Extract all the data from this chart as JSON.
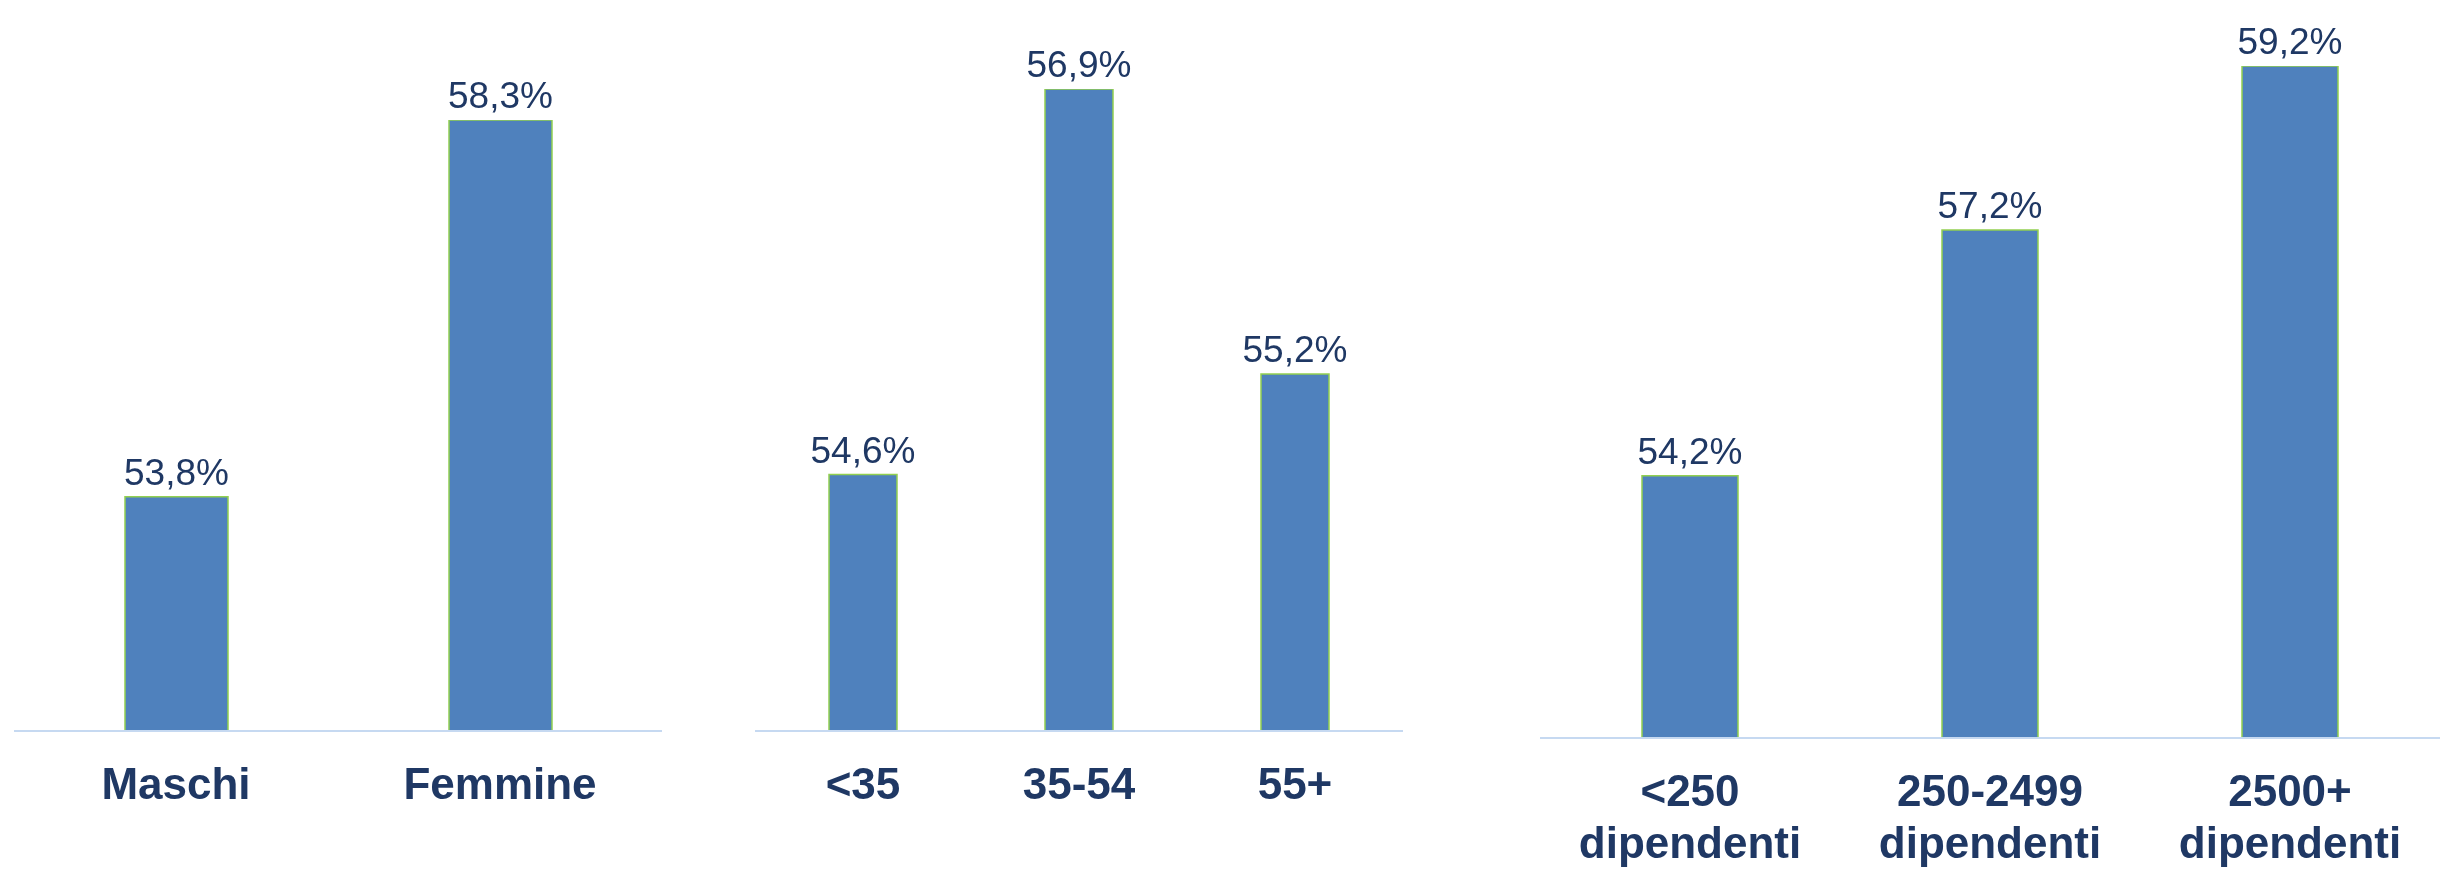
{
  "chart_data": [
    {
      "type": "bar",
      "categories": [
        "Maschi",
        "Femmine"
      ],
      "values": [
        53.8,
        58.3
      ],
      "value_labels": [
        "53,8%",
        "58,3%"
      ],
      "color": "#4f81bd",
      "ylim": [
        51,
        58.3
      ]
    },
    {
      "type": "bar",
      "categories": [
        "<35",
        "35-54",
        "55+"
      ],
      "values": [
        54.6,
        56.9,
        55.2
      ],
      "value_labels": [
        "54,6%",
        "56,9%",
        "55,2%"
      ],
      "color": "#4f81bd",
      "ylim": [
        53.07,
        56.9
      ]
    },
    {
      "type": "bar",
      "categories": [
        "<250 dipendenti",
        "250-2499 dipendenti",
        "2500+ dipendenti"
      ],
      "values": [
        54.2,
        57.2,
        59.2
      ],
      "value_labels": [
        "54,2%",
        "57,2%",
        "59,2%"
      ],
      "color": "#4f81bd",
      "ylim": [
        51,
        59.2
      ]
    }
  ]
}
